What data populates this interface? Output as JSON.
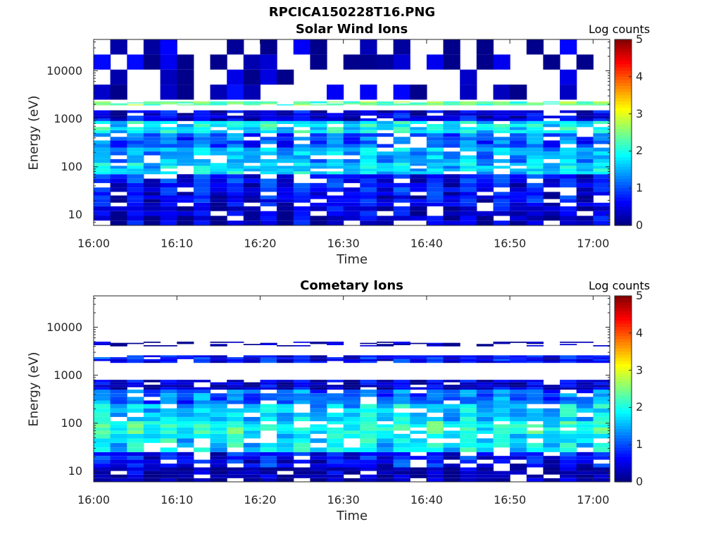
{
  "figure_title": "RPCICA150228T16.PNG",
  "colorbar": {
    "label": "Log counts",
    "ticks": [
      "0",
      "1",
      "2",
      "3",
      "4",
      "5"
    ],
    "range": [
      0,
      5
    ],
    "colormap": "jet"
  },
  "chart_data": [
    {
      "type": "heatmap",
      "title": "Solar Wind Ions",
      "xlabel": "Time",
      "ylabel": "Energy (eV)",
      "x_tick_labels": [
        "16:00",
        "16:10",
        "16:20",
        "16:30",
        "16:40",
        "16:50",
        "17:00"
      ],
      "y_tick_labels": [
        "10",
        "100",
        "1000",
        "10000"
      ],
      "y_scale": "log",
      "ylim_eV": [
        6,
        45000
      ],
      "xlim": [
        "16:00",
        "17:02"
      ],
      "time_columns": [
        "16:00",
        "16:02",
        "16:04",
        "16:06",
        "16:08",
        "16:10",
        "16:12",
        "16:14",
        "16:16",
        "16:18",
        "16:20",
        "16:22",
        "16:24",
        "16:26",
        "16:28",
        "16:30",
        "16:32",
        "16:34",
        "16:36",
        "16:38",
        "16:40",
        "16:42",
        "16:44",
        "16:46",
        "16:48",
        "16:50",
        "16:52",
        "16:54",
        "16:56",
        "16:58",
        "17:00"
      ],
      "energy_profile": [
        {
          "energy_eV": [
            6,
            15
          ],
          "log_counts": 0.3
        },
        {
          "energy_eV": [
            15,
            30
          ],
          "log_counts": 0.5
        },
        {
          "energy_eV": [
            30,
            70
          ],
          "log_counts": 0.6
        },
        {
          "energy_eV": [
            70,
            120
          ],
          "log_counts": 1.6
        },
        {
          "energy_eV": [
            120,
            250
          ],
          "log_counts": 1.4
        },
        {
          "energy_eV": [
            250,
            500
          ],
          "log_counts": 1.0
        },
        {
          "energy_eV": [
            500,
            900
          ],
          "log_counts": 1.8
        },
        {
          "energy_eV": [
            900,
            1500
          ],
          "log_counts": 0.4
        },
        {
          "energy_eV": [
            1900,
            2300
          ],
          "log_counts": 2.3
        },
        {
          "energy_eV": [
            2500,
            45000
          ],
          "log_counts": 0.1
        }
      ]
    },
    {
      "type": "heatmap",
      "title": "Cometary Ions",
      "xlabel": "Time",
      "ylabel": "Energy (eV)",
      "x_tick_labels": [
        "16:00",
        "16:10",
        "16:20",
        "16:30",
        "16:40",
        "16:50",
        "17:00"
      ],
      "y_tick_labels": [
        "10",
        "100",
        "1000",
        "10000"
      ],
      "y_scale": "log",
      "ylim_eV": [
        6,
        45000
      ],
      "xlim": [
        "16:00",
        "17:02"
      ],
      "time_columns": [
        "16:00",
        "16:02",
        "16:04",
        "16:06",
        "16:08",
        "16:10",
        "16:12",
        "16:14",
        "16:16",
        "16:18",
        "16:20",
        "16:22",
        "16:24",
        "16:26",
        "16:28",
        "16:30",
        "16:32",
        "16:34",
        "16:36",
        "16:38",
        "16:40",
        "16:42",
        "16:44",
        "16:46",
        "16:48",
        "16:50",
        "16:52",
        "16:54",
        "16:56",
        "16:58",
        "17:00"
      ],
      "energy_profile": [
        {
          "energy_eV": [
            6,
            12
          ],
          "log_counts": 0.2
        },
        {
          "energy_eV": [
            12,
            25
          ],
          "log_counts": 0.6
        },
        {
          "energy_eV": [
            25,
            60
          ],
          "log_counts": 1.7
        },
        {
          "energy_eV": [
            60,
            110
          ],
          "log_counts": 2.0
        },
        {
          "energy_eV": [
            110,
            250
          ],
          "log_counts": 1.6
        },
        {
          "energy_eV": [
            250,
            500
          ],
          "log_counts": 1.1
        },
        {
          "energy_eV": [
            500,
            800
          ],
          "log_counts": 0.3
        },
        {
          "energy_eV": [
            1800,
            2600
          ],
          "log_counts": 0.6
        },
        {
          "energy_eV": [
            4000,
            5000
          ],
          "log_counts": 0.1
        }
      ]
    }
  ]
}
